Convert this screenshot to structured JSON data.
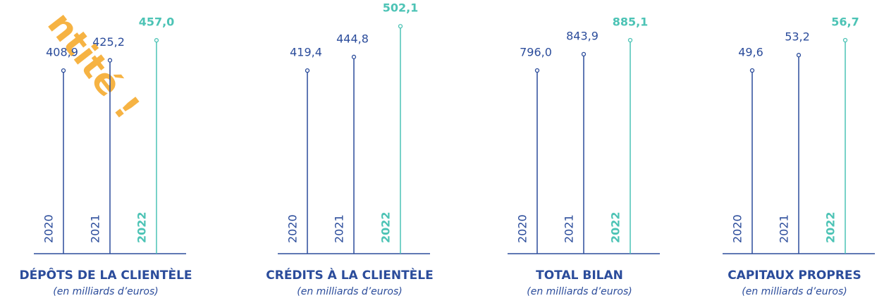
{
  "watermark": "ntité !",
  "chart_data": [
    {
      "type": "lollipop",
      "title": "DÉPÔTS DE LA CLIENTÈLE",
      "subtitle": "(en milliards d’euros)",
      "categories": [
        "2020",
        "2021",
        "2022"
      ],
      "values": [
        408.9,
        425.2,
        457.0
      ],
      "value_labels": [
        "408,9",
        "425,2",
        "457,0"
      ],
      "colors": [
        "#2b4c9b",
        "#2b4c9b",
        "#4cc3b5"
      ],
      "ylim": [
        118,
        521
      ]
    },
    {
      "type": "lollipop",
      "title": "CRÉDITS À LA CLIENTÈLE",
      "subtitle": "(en milliards d’euros)",
      "categories": [
        "2020",
        "2021",
        "2022"
      ],
      "values": [
        419.4,
        444.8,
        502.1
      ],
      "value_labels": [
        "419,4",
        "444,8",
        "502,1"
      ],
      "colors": [
        "#2b4c9b",
        "#2b4c9b",
        "#4cc3b5"
      ],
      "ylim": [
        78,
        551
      ]
    },
    {
      "type": "lollipop",
      "title": "TOTAL BILAN",
      "subtitle": "(en milliards d’euros)",
      "categories": [
        "2020",
        "2021",
        "2022"
      ],
      "values": [
        796.0,
        843.9,
        885.1
      ],
      "value_labels": [
        "796,0",
        "843,9",
        "885,1"
      ],
      "colors": [
        "#2b4c9b",
        "#2b4c9b",
        "#4cc3b5"
      ],
      "ylim": [
        258,
        1003
      ]
    },
    {
      "type": "lollipop",
      "title": "CAPITAUX PROPRES",
      "subtitle": "(en milliards d’euros)",
      "categories": [
        "2020",
        "2021",
        "2022"
      ],
      "values": [
        49.6,
        53.2,
        56.7
      ],
      "value_labels": [
        "49,6",
        "53,2",
        "56,7"
      ],
      "colors": [
        "#2b4c9b",
        "#2b4c9b",
        "#4cc3b5"
      ],
      "ylim": [
        6.7,
        66.1
      ]
    }
  ]
}
